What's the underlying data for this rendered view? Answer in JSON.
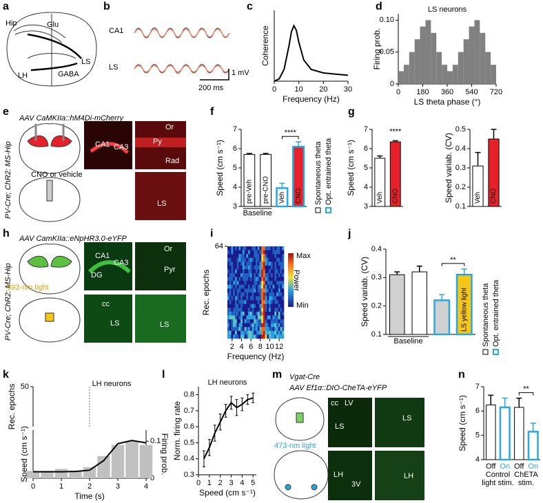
{
  "panels": [
    "a",
    "b",
    "c",
    "d",
    "e",
    "f",
    "g",
    "h",
    "i",
    "j",
    "k",
    "l",
    "m",
    "n"
  ],
  "a": {
    "labels": [
      "Hip",
      "Glu",
      "LH",
      "GABA",
      "LS"
    ]
  },
  "b": {
    "labels": [
      "CA1",
      "LS"
    ],
    "scale_y": "1 mV",
    "scale_x": "200 ms"
  },
  "e": {
    "construct": "AAV CaMKIIa::hM4Di-mCherry",
    "mouse": "PV-Cre; ChR2: MS-Hip",
    "injection": "CNO or vehicle",
    "image_labels": [
      "CA1",
      "CA3",
      "Or",
      "Py",
      "Rad",
      "LS"
    ]
  },
  "h": {
    "construct": "AAV CamKIIa::eNpHR3.0-eYFP",
    "mouse": "PV-Cre; ChR2: MS-Hip",
    "light": "593-nm light",
    "image_labels": [
      "CA1",
      "CA3",
      "DG",
      "Or",
      "Pyr",
      "cc",
      "LS",
      "LS"
    ]
  },
  "m": {
    "mouse": "Vgat-Cre",
    "construct": "AAV Ef1α::DIO-CheTA-eYFP",
    "light": "473-nm light",
    "image_labels": [
      "cc",
      "LV",
      "LS",
      "LS",
      "LH",
      "3V",
      "LH"
    ]
  },
  "legend": [
    "Spontaneous theta",
    "Opt. entrained theta"
  ],
  "colorbar": [
    "Max",
    "Power",
    "Min"
  ],
  "chart_data": [
    {
      "type": "line",
      "xlabel": "Frequency (Hz)",
      "ylabel": "Coherence",
      "x": [
        0,
        2,
        4,
        6,
        7,
        8,
        9,
        10,
        12,
        15,
        20,
        25,
        30
      ],
      "values": [
        0,
        0.02,
        0.1,
        0.3,
        0.42,
        0.47,
        0.43,
        0.33,
        0.18,
        0.1,
        0.07,
        0.06,
        0.05
      ],
      "color": "#000000",
      "xlim": [
        0,
        30
      ],
      "xticks": [
        0,
        10,
        20,
        30
      ],
      "ylim": [
        0,
        0.6
      ]
    },
    {
      "type": "histogram",
      "title": "LS neurons",
      "xlabel": "LS theta phase (°)",
      "ylabel": "Firing prob.",
      "bins": [
        0,
        40,
        80,
        120,
        160,
        200,
        240,
        280,
        320,
        360,
        400,
        440,
        480,
        520,
        560,
        600,
        640,
        680,
        720
      ],
      "values": [
        0.02,
        0.03,
        0.05,
        0.07,
        0.09,
        0.1,
        0.08,
        0.05,
        0.03,
        0.02,
        0.03,
        0.05,
        0.07,
        0.09,
        0.1,
        0.08,
        0.05,
        0.03
      ],
      "color": "#808080",
      "xlim": [
        0,
        720
      ],
      "xticks": [
        0,
        180,
        360,
        540,
        720
      ],
      "ylim": [
        0,
        0.11
      ],
      "yticks": [
        0,
        0.05,
        {
          "value": 0.1,
          "label": "0.10"
        }
      ]
    },
    {
      "type": "bar",
      "ylabel": "Speed (cm s⁻¹)",
      "categories": [
        "pre-Veh",
        "pre-CNO",
        "Veh",
        "CNO"
      ],
      "values": [
        5.7,
        5.7,
        3.95,
        6.1
      ],
      "errors": [
        0.05,
        0.05,
        0.25,
        0.25
      ],
      "colors": [
        "#ffffff",
        "#ffffff",
        "#ffffff",
        "#e8202a"
      ],
      "edge_colors": [
        "#000000",
        "#000000",
        "#29a8e0",
        "#29a8e0"
      ],
      "category_labels": "inside",
      "significance": "****",
      "group_labels": [
        [
          "Baseline"
        ]
      ],
      "ylim": [
        3,
        7
      ],
      "yticks": [
        3,
        4,
        5,
        6,
        7
      ]
    },
    {
      "type": "bar",
      "ylabel": "Speed (cm s⁻¹)",
      "categories": [
        "Veh",
        "CNO"
      ],
      "values": [
        5.5,
        6.35
      ],
      "errors": [
        0.12,
        0.06
      ],
      "colors": [
        "#ffffff",
        "#e8202a"
      ],
      "edge_colors": [
        "#000000",
        "#000000"
      ],
      "category_labels": "inside",
      "significance": "****",
      "ylim": [
        3,
        7
      ],
      "yticks": [
        3,
        4,
        5,
        6,
        7
      ]
    },
    {
      "type": "bar",
      "ylabel": "Speed variab. (CV)",
      "categories": [
        "Veh",
        "CNO"
      ],
      "values": [
        0.31,
        0.45
      ],
      "errors": [
        0.07,
        0.05
      ],
      "colors": [
        "#ffffff",
        "#e8202a"
      ],
      "edge_colors": [
        "#000000",
        "#000000"
      ],
      "category_labels": "inside",
      "ylim": [
        0.1,
        0.5
      ],
      "yticks": [
        0.1,
        0.2,
        0.3,
        0.4,
        0.5
      ]
    },
    {
      "type": "heatmap",
      "xlabel": "Frequency (Hz)",
      "ylabel": "Rec. epochs",
      "xlim": [
        1,
        13
      ],
      "xticks": [
        2,
        4,
        6,
        8,
        10,
        12
      ],
      "ylim": [
        0,
        64
      ],
      "yticks": [
        64
      ]
    },
    {
      "type": "bar",
      "ylabel": "Speed variab. (CV)",
      "categories": [
        null,
        null,
        null,
        "LS yellow light"
      ],
      "values": [
        0.31,
        0.32,
        0.22,
        0.31
      ],
      "errors": [
        0.01,
        0.02,
        0.02,
        0.02
      ],
      "colors": [
        "#d0d0d0",
        "#ffffff",
        "#d0d0d0",
        "#f5c518"
      ],
      "edge_colors": [
        "#000000",
        "#000000",
        "#29a8e0",
        "#29a8e0"
      ],
      "category_labels": "inside",
      "significance": "**",
      "group_labels": [
        [
          "Baseline"
        ]
      ],
      "ylim": [
        0.1,
        0.4
      ],
      "yticks": [
        0.1,
        0.2,
        0.3,
        0.4
      ]
    },
    {
      "type": "raster",
      "title": "LH neurons",
      "ylabel": "Rec. epochs",
      "xlim": [
        0,
        4
      ],
      "ylim": [
        0,
        50
      ],
      "yticks": [
        50
      ]
    },
    {
      "type": "line",
      "xlabel": "Time (s)",
      "ylabel": "Speed (cm s⁻¹)",
      "y2label": "Firing prob.",
      "x": [
        0,
        0.5,
        1,
        1.5,
        2,
        2.5,
        3,
        3.5,
        4
      ],
      "series": [
        {
          "values": [
            0.02,
            0.02,
            0.025,
            0.02,
            0.03,
            0.06,
            0.09,
            0.1,
            0.09
          ],
          "color": "#c0c0c0",
          "axis": "y2",
          "kind": "bar"
        },
        {
          "values": [
            0.8,
            0.8,
            0.8,
            0.85,
            1,
            2.2,
            4.3,
            4.7,
            4.4
          ],
          "color": "#000000"
        }
      ],
      "xlim": [
        0,
        4
      ],
      "xticks": [
        0,
        1,
        2,
        3,
        4
      ],
      "ylim": [
        0,
        6
      ],
      "y2lim": [
        0,
        0.13
      ],
      "y2ticks": [
        0,
        0.1
      ]
    },
    {
      "type": "line",
      "title": "LH neurons",
      "xlabel": "Speed (cm s⁻¹)",
      "ylabel": "Norm. firing rate",
      "x": [
        0.5,
        1,
        1.5,
        2,
        2.5,
        3,
        3.5,
        4,
        4.5,
        5
      ],
      "values": [
        0.4,
        0.47,
        0.56,
        0.63,
        0.7,
        0.75,
        0.72,
        0.74,
        0.77,
        0.78
      ],
      "errors": [
        0.05,
        0.05,
        0.05,
        0.05,
        0.04,
        0.04,
        0.05,
        0.04,
        0.03,
        0.03
      ],
      "color": "#000000",
      "xlim": [
        0,
        5.3
      ],
      "xticks": [
        0,
        1,
        2,
        3,
        4,
        5
      ],
      "ylim": [
        0.3,
        0.85
      ],
      "yticks": [
        0.3,
        0.4,
        0.5,
        0.6,
        0.7,
        0.8
      ]
    },
    {
      "type": "bar",
      "ylabel": "Speed (cm s⁻¹)",
      "categories": [
        "Off",
        "On",
        "Off",
        "On"
      ],
      "values": [
        6.25,
        6.15,
        6.15,
        5.15
      ],
      "errors": [
        0.4,
        0.38,
        0.38,
        0.35
      ],
      "colors": [
        "#ffffff",
        "#ffffff",
        "#ffffff",
        "#ffffff"
      ],
      "edge_colors": [
        "#000000",
        "#29a8e0",
        "#000000",
        "#29a8e0"
      ],
      "category_labels": "below",
      "significance": "**",
      "group_labels": [
        [
          "Control",
          "light stim."
        ],
        [
          "ChETA",
          "stim."
        ]
      ],
      "ylim": [
        4,
        7
      ],
      "yticks": [
        4,
        5,
        6,
        7
      ]
    }
  ]
}
